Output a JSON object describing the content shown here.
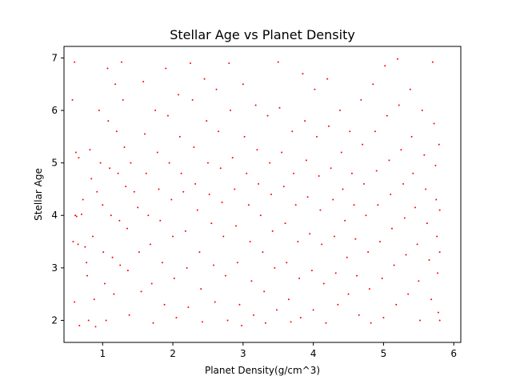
{
  "chart_data": {
    "type": "scatter",
    "title": "Stellar Age vs Planet Density",
    "xlabel": "Planet Density(g/cm^3)",
    "ylabel": "Stellar Age",
    "xlim": [
      0.45,
      6.1
    ],
    "ylim": [
      1.58,
      7.22
    ],
    "x_ticks": [
      1,
      2,
      3,
      4,
      5,
      6
    ],
    "y_ticks": [
      2,
      3,
      4,
      5,
      6,
      7
    ],
    "grid": false,
    "legend": "none",
    "series": [
      {
        "color": "#ff0000",
        "marker_shape": "dot",
        "points": [
          [
            0.6,
            6.92
          ],
          [
            0.57,
            6.2
          ],
          [
            0.62,
            5.2
          ],
          [
            0.66,
            5.1
          ],
          [
            0.61,
            4.0
          ],
          [
            0.63,
            3.98
          ],
          [
            0.7,
            4.02
          ],
          [
            0.58,
            3.5
          ],
          [
            0.65,
            3.45
          ],
          [
            0.6,
            2.35
          ],
          [
            0.67,
            1.9
          ],
          [
            0.72,
            4.3
          ],
          [
            0.75,
            3.4
          ],
          [
            0.77,
            3.1
          ],
          [
            0.78,
            2.85
          ],
          [
            0.8,
            2.0
          ],
          [
            0.82,
            5.25
          ],
          [
            0.84,
            4.7
          ],
          [
            0.86,
            3.6
          ],
          [
            0.88,
            2.4
          ],
          [
            0.9,
            1.88
          ],
          [
            0.92,
            4.45
          ],
          [
            0.95,
            6.0
          ],
          [
            0.97,
            5.0
          ],
          [
            1.0,
            4.2
          ],
          [
            1.01,
            3.3
          ],
          [
            1.03,
            2.7
          ],
          [
            1.05,
            2.0
          ],
          [
            1.07,
            6.8
          ],
          [
            1.08,
            5.8
          ],
          [
            1.1,
            4.9
          ],
          [
            1.12,
            4.0
          ],
          [
            1.14,
            3.2
          ],
          [
            1.16,
            2.5
          ],
          [
            1.18,
            6.5
          ],
          [
            1.2,
            5.6
          ],
          [
            1.22,
            4.8
          ],
          [
            1.24,
            3.9
          ],
          [
            1.25,
            3.05
          ],
          [
            1.27,
            6.92
          ],
          [
            1.29,
            6.2
          ],
          [
            1.31,
            5.3
          ],
          [
            1.33,
            4.55
          ],
          [
            1.35,
            3.75
          ],
          [
            1.36,
            2.95
          ],
          [
            1.38,
            2.1
          ],
          [
            1.4,
            5.0
          ],
          [
            1.45,
            4.45
          ],
          [
            1.5,
            4.15
          ],
          [
            1.52,
            3.3
          ],
          [
            1.55,
            2.55
          ],
          [
            1.58,
            6.55
          ],
          [
            1.6,
            5.55
          ],
          [
            1.62,
            4.8
          ],
          [
            1.65,
            4.0
          ],
          [
            1.68,
            3.45
          ],
          [
            1.7,
            2.7
          ],
          [
            1.72,
            1.95
          ],
          [
            1.75,
            6.0
          ],
          [
            1.78,
            5.2
          ],
          [
            1.8,
            4.5
          ],
          [
            1.82,
            3.9
          ],
          [
            1.85,
            3.1
          ],
          [
            1.88,
            2.3
          ],
          [
            1.9,
            6.8
          ],
          [
            1.93,
            5.9
          ],
          [
            1.95,
            5.0
          ],
          [
            1.98,
            4.3
          ],
          [
            2.0,
            3.6
          ],
          [
            2.02,
            2.8
          ],
          [
            2.05,
            2.05
          ],
          [
            2.08,
            6.3
          ],
          [
            2.1,
            5.5
          ],
          [
            2.12,
            4.8
          ],
          [
            2.15,
            4.45
          ],
          [
            2.18,
            3.7
          ],
          [
            2.2,
            3.0
          ],
          [
            2.22,
            2.25
          ],
          [
            2.25,
            6.9
          ],
          [
            2.28,
            6.2
          ],
          [
            2.3,
            5.3
          ],
          [
            2.32,
            4.6
          ],
          [
            2.35,
            4.1
          ],
          [
            2.38,
            3.3
          ],
          [
            2.4,
            2.6
          ],
          [
            2.42,
            1.97
          ],
          [
            2.45,
            6.6
          ],
          [
            2.48,
            5.8
          ],
          [
            2.5,
            5.0
          ],
          [
            2.52,
            4.4
          ],
          [
            2.55,
            3.85
          ],
          [
            2.58,
            3.05
          ],
          [
            2.6,
            2.35
          ],
          [
            2.62,
            6.4
          ],
          [
            2.65,
            5.6
          ],
          [
            2.68,
            4.9
          ],
          [
            2.7,
            4.25
          ],
          [
            2.72,
            3.6
          ],
          [
            2.75,
            2.85
          ],
          [
            2.78,
            2.0
          ],
          [
            2.8,
            6.9
          ],
          [
            2.82,
            6.0
          ],
          [
            2.85,
            5.1
          ],
          [
            2.88,
            4.5
          ],
          [
            2.9,
            3.8
          ],
          [
            2.92,
            3.1
          ],
          [
            2.95,
            2.3
          ],
          [
            2.98,
            1.9
          ],
          [
            3.0,
            6.5
          ],
          [
            3.02,
            5.5
          ],
          [
            3.05,
            4.8
          ],
          [
            3.08,
            4.2
          ],
          [
            3.1,
            3.5
          ],
          [
            3.12,
            2.75
          ],
          [
            3.15,
            2.1
          ],
          [
            3.18,
            6.1
          ],
          [
            3.2,
            5.25
          ],
          [
            3.22,
            4.6
          ],
          [
            3.25,
            4.0
          ],
          [
            3.28,
            3.3
          ],
          [
            3.3,
            2.55
          ],
          [
            3.32,
            1.95
          ],
          [
            3.35,
            5.9
          ],
          [
            3.38,
            5.0
          ],
          [
            3.4,
            4.4
          ],
          [
            3.42,
            3.7
          ],
          [
            3.45,
            3.0
          ],
          [
            3.48,
            2.2
          ],
          [
            3.5,
            6.92
          ],
          [
            3.52,
            6.05
          ],
          [
            3.55,
            5.2
          ],
          [
            3.58,
            4.55
          ],
          [
            3.6,
            3.85
          ],
          [
            3.62,
            3.1
          ],
          [
            3.65,
            2.4
          ],
          [
            3.68,
            1.97
          ],
          [
            3.7,
            5.6
          ],
          [
            3.72,
            4.8
          ],
          [
            3.75,
            4.2
          ],
          [
            3.78,
            3.5
          ],
          [
            3.8,
            2.8
          ],
          [
            3.82,
            2.05
          ],
          [
            3.85,
            6.7
          ],
          [
            3.88,
            5.8
          ],
          [
            3.9,
            5.05
          ],
          [
            3.92,
            4.35
          ],
          [
            3.95,
            3.65
          ],
          [
            3.98,
            2.95
          ],
          [
            4.0,
            2.2
          ],
          [
            4.02,
            6.4
          ],
          [
            4.05,
            5.5
          ],
          [
            4.08,
            4.75
          ],
          [
            4.1,
            4.1
          ],
          [
            4.12,
            3.45
          ],
          [
            4.15,
            2.7
          ],
          [
            4.18,
            1.95
          ],
          [
            4.2,
            6.6
          ],
          [
            4.22,
            5.7
          ],
          [
            4.25,
            4.9
          ],
          [
            4.28,
            4.3
          ],
          [
            4.3,
            3.6
          ],
          [
            4.32,
            2.9
          ],
          [
            4.35,
            2.3
          ],
          [
            4.38,
            6.0
          ],
          [
            4.4,
            5.2
          ],
          [
            4.42,
            4.5
          ],
          [
            4.45,
            3.9
          ],
          [
            4.48,
            3.2
          ],
          [
            4.5,
            2.5
          ],
          [
            4.52,
            5.6
          ],
          [
            4.55,
            4.8
          ],
          [
            4.58,
            4.2
          ],
          [
            4.6,
            3.55
          ],
          [
            4.62,
            2.85
          ],
          [
            4.65,
            2.1
          ],
          [
            4.68,
            6.2
          ],
          [
            4.7,
            5.35
          ],
          [
            4.72,
            4.6
          ],
          [
            4.75,
            4.0
          ],
          [
            4.78,
            3.3
          ],
          [
            4.8,
            2.6
          ],
          [
            4.82,
            1.95
          ],
          [
            4.85,
            6.5
          ],
          [
            4.88,
            5.6
          ],
          [
            4.9,
            4.85
          ],
          [
            4.92,
            4.2
          ],
          [
            4.95,
            3.5
          ],
          [
            4.98,
            2.8
          ],
          [
            5.0,
            2.05
          ],
          [
            5.02,
            6.85
          ],
          [
            5.05,
            5.9
          ],
          [
            5.08,
            5.05
          ],
          [
            5.1,
            4.4
          ],
          [
            5.12,
            3.75
          ],
          [
            5.15,
            3.05
          ],
          [
            5.18,
            2.3
          ],
          [
            5.2,
            6.98
          ],
          [
            5.22,
            6.1
          ],
          [
            5.25,
            5.25
          ],
          [
            5.28,
            4.6
          ],
          [
            5.3,
            3.95
          ],
          [
            5.32,
            3.25
          ],
          [
            5.35,
            2.5
          ],
          [
            5.38,
            6.4
          ],
          [
            5.4,
            5.5
          ],
          [
            5.42,
            4.8
          ],
          [
            5.45,
            4.15
          ],
          [
            5.48,
            3.45
          ],
          [
            5.5,
            2.75
          ],
          [
            5.52,
            2.0
          ],
          [
            5.55,
            6.0
          ],
          [
            5.58,
            5.15
          ],
          [
            5.6,
            4.5
          ],
          [
            5.62,
            3.85
          ],
          [
            5.65,
            3.15
          ],
          [
            5.68,
            2.4
          ],
          [
            5.7,
            6.92
          ],
          [
            5.72,
            5.75
          ],
          [
            5.74,
            4.95
          ],
          [
            5.75,
            4.3
          ],
          [
            5.76,
            3.6
          ],
          [
            5.77,
            2.9
          ],
          [
            5.78,
            2.15
          ],
          [
            5.79,
            5.35
          ],
          [
            5.8,
            4.1
          ],
          [
            5.8,
            3.3
          ],
          [
            5.8,
            2.0
          ]
        ]
      }
    ]
  }
}
